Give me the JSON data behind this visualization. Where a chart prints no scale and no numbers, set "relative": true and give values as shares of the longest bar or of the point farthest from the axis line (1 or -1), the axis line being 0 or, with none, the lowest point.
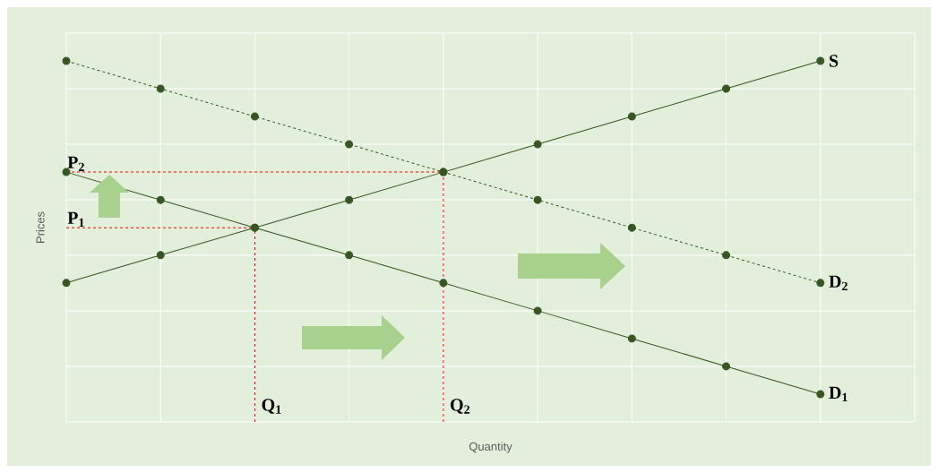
{
  "chart_data": {
    "type": "line",
    "relative": true,
    "xlabel": "Quantity",
    "ylabel": "Prices",
    "categories": [
      null,
      null,
      null,
      null,
      null,
      null,
      null,
      null,
      null
    ],
    "series": [
      {
        "name": "S",
        "color": "#375623",
        "line_style": "solid",
        "values": [
          0.385,
          0.462,
          0.538,
          0.615,
          0.692,
          0.769,
          0.846,
          0.923,
          1.0
        ]
      },
      {
        "name": "D$_{2}$",
        "color": "#375623",
        "line_style": "dashed",
        "values": [
          1.0,
          0.923,
          0.846,
          0.769,
          0.692,
          0.615,
          0.538,
          0.462,
          0.385
        ]
      },
      {
        "name": "D$_{1}$",
        "color": "#375623",
        "line_style": "solid",
        "values": [
          0.692,
          0.615,
          0.538,
          0.462,
          0.385,
          0.308,
          0.231,
          0.154,
          0.077
        ]
      }
    ],
    "ref_lines": [
      {
        "axis": "y",
        "value": 0.692,
        "label": "P$_{2}$",
        "color": "#ff0000",
        "line_style": "dashed"
      },
      {
        "axis": "y",
        "value": 0.538,
        "label": "P$_{1}$",
        "color": "#ff0000",
        "line_style": "dashed"
      }
    ],
    "annotations": [
      "Q$_{2}$",
      "Q$_{1}$"
    ],
    "grid": true,
    "marker": "circle"
  }
}
